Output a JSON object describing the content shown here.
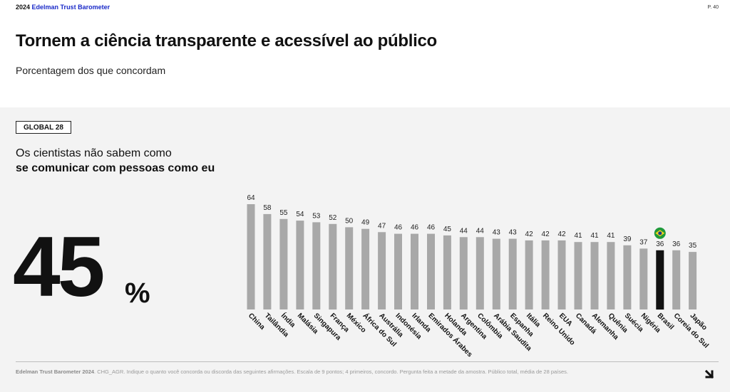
{
  "header": {
    "year": "2024",
    "brand": "Edelman Trust Barometer",
    "page": "P. 40"
  },
  "title": "Tornem a ciência transparente e acessível ao público",
  "subtitle": "Porcentagem dos que concordam",
  "badge": "GLOBAL 28",
  "statement_line1": "Os cientistas não sabem como",
  "statement_line2": "se comunicar com pessoas como eu",
  "global_value": "45",
  "global_unit": "%",
  "footnote": {
    "source": "Edelman Trust Barometer 2024",
    "text": ". CHG_AGR. Indique o quanto você concorda ou discorda das seguintes afirmações. Escala de 9 pontos; 4 primeiros, concordo. Pergunta feita a metade da amostra. Público total, média de 28 países."
  },
  "colors": {
    "bar": "#a8a8a8",
    "highlight": "#111111",
    "panel": "#f3f3f3",
    "brand": "#1a2ac8"
  },
  "icons": {
    "flag": "brazil-flag-icon",
    "next": "arrow-down-right-icon"
  },
  "chart_data": {
    "type": "bar",
    "categories": [
      "China",
      "Tailândia",
      "Índia",
      "Malásia",
      "Singapura",
      "França",
      "México",
      "África do Sul",
      "Austrália",
      "Indonésia",
      "Irlanda",
      "Emirados Árabes",
      "Holanda",
      "Argentina",
      "Colômbia",
      "Arábia Saudita",
      "Espanha",
      "Itália",
      "Reino Unido",
      "EUA",
      "Canadá",
      "Alemanha",
      "Quênia",
      "Suécia",
      "Nigéria",
      "Brasil",
      "Coreia do Sul",
      "Japão"
    ],
    "values": [
      64,
      58,
      55,
      54,
      53,
      52,
      50,
      49,
      47,
      46,
      46,
      46,
      45,
      44,
      44,
      43,
      43,
      42,
      42,
      42,
      41,
      41,
      41,
      39,
      37,
      36,
      36,
      35
    ],
    "highlight": "Brasil",
    "ylim": [
      0,
      64
    ],
    "grid": false,
    "xlabel": "",
    "ylabel": ""
  }
}
